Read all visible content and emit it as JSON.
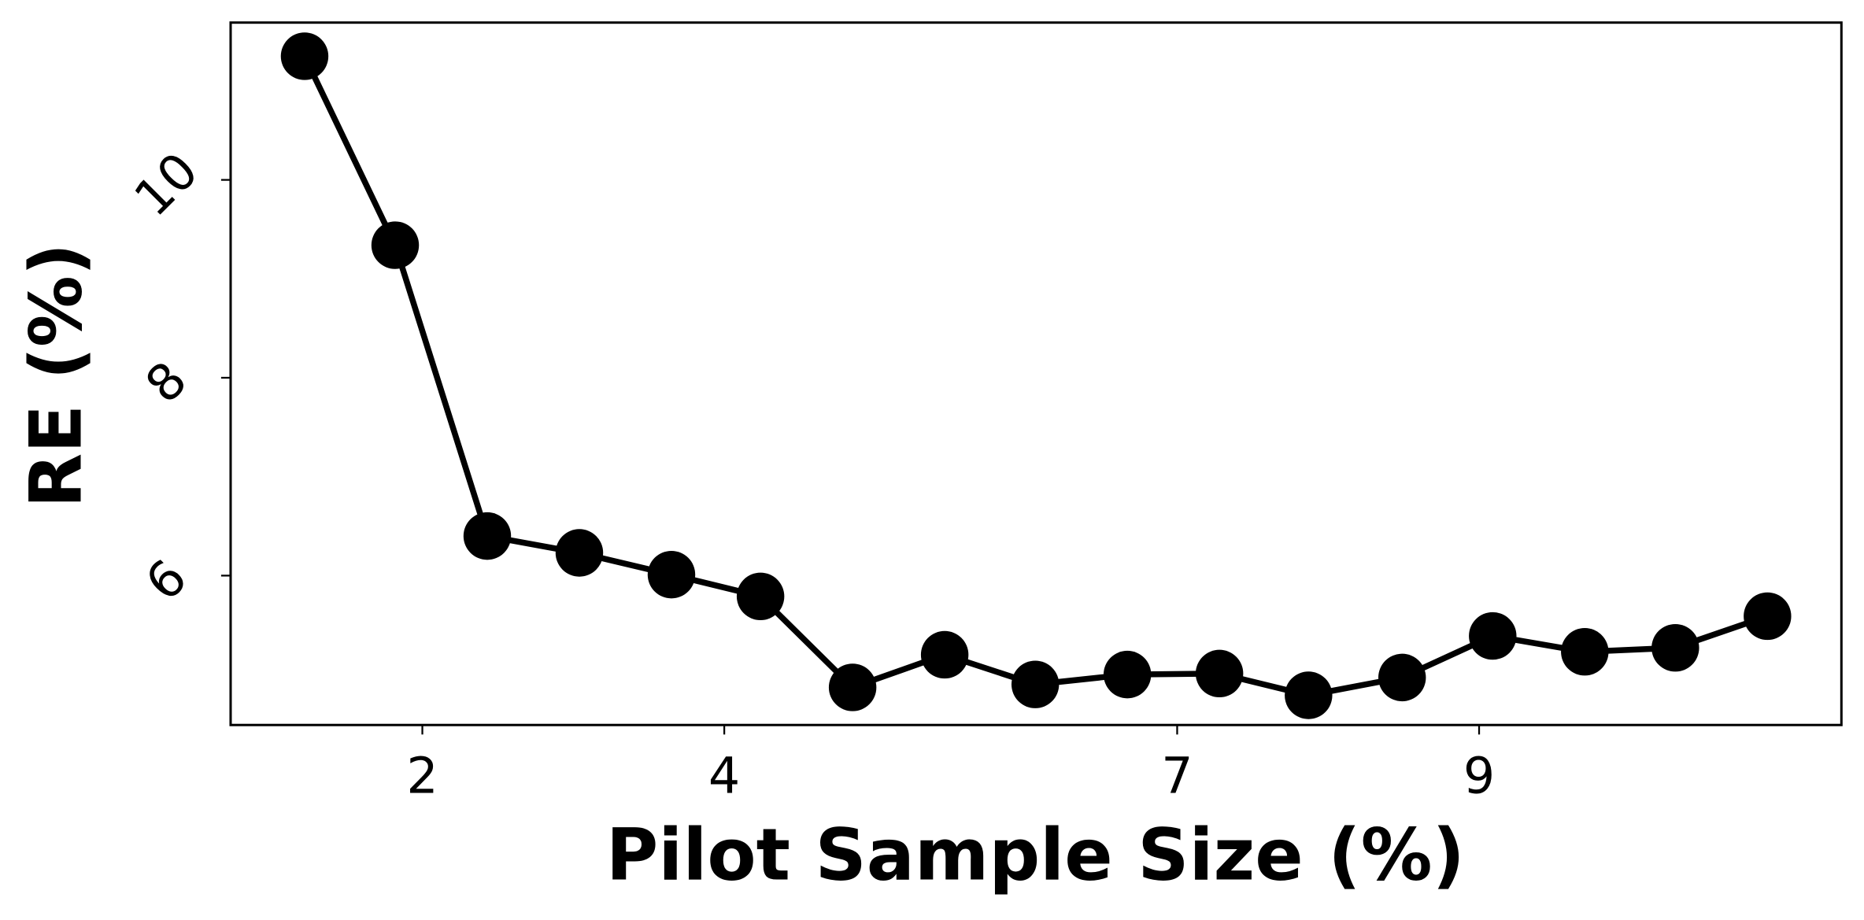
{
  "chart_data": {
    "type": "line",
    "x_label": "Pilot Sample Size (%)",
    "y_label": "RE (%)",
    "x": [
      1.22,
      1.82,
      2.43,
      3.04,
      3.65,
      4.24,
      4.85,
      5.46,
      6.06,
      6.67,
      7.28,
      7.87,
      8.49,
      9.09,
      9.7,
      10.3,
      10.91
    ],
    "series": [
      {
        "color": "#000000",
        "values": [
          11.25,
          9.34,
          6.4,
          6.23,
          6.01,
          5.79,
          4.87,
          5.2,
          4.9,
          5.0,
          5.01,
          4.79,
          4.97,
          5.39,
          5.23,
          5.27,
          5.59
        ]
      }
    ],
    "xlim": [
      0.73,
      11.4
    ],
    "ylim": [
      4.49,
      11.59
    ],
    "xticks": [
      2,
      4,
      7,
      9
    ],
    "yticks": [
      6,
      8,
      10
    ],
    "grid": false
  }
}
